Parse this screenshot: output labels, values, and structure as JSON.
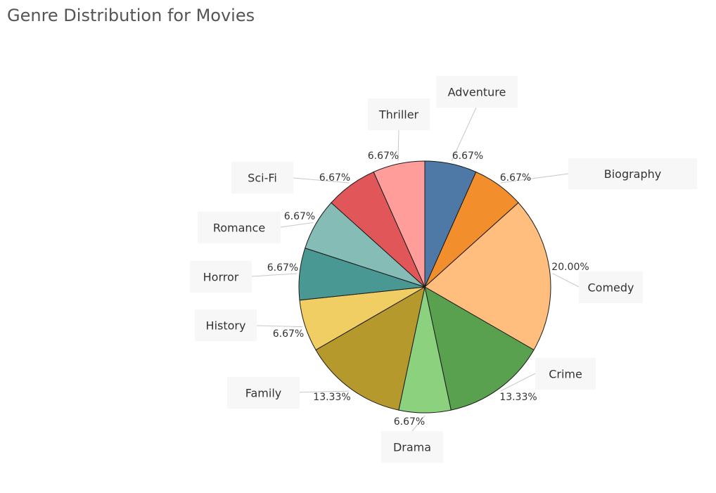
{
  "chart_data": {
    "type": "pie",
    "title": "Genre Distribution for Movies",
    "start_angle_deg": 0,
    "direction": "clockwise",
    "slices": [
      {
        "label": "Adventure",
        "value": 6.67,
        "value_label": "6.67%",
        "color": "#4e79a7"
      },
      {
        "label": "Biography",
        "value": 6.67,
        "value_label": "6.67%",
        "color": "#f28e2b"
      },
      {
        "label": "Comedy",
        "value": 20.0,
        "value_label": "20.00%",
        "color": "#ffbe7d"
      },
      {
        "label": "Crime",
        "value": 13.33,
        "value_label": "13.33%",
        "color": "#59a14f"
      },
      {
        "label": "Drama",
        "value": 6.67,
        "value_label": "6.67%",
        "color": "#8cd17d"
      },
      {
        "label": "Family",
        "value": 13.33,
        "value_label": "13.33%",
        "color": "#b6992d"
      },
      {
        "label": "History",
        "value": 6.67,
        "value_label": "6.67%",
        "color": "#f1ce63"
      },
      {
        "label": "Horror",
        "value": 6.67,
        "value_label": "6.67%",
        "color": "#499894"
      },
      {
        "label": "Romance",
        "value": 6.67,
        "value_label": "6.67%",
        "color": "#86bcb6"
      },
      {
        "label": "Sci-Fi",
        "value": 6.67,
        "value_label": "6.67%",
        "color": "#e15759"
      },
      {
        "label": "Thriller",
        "value": 6.67,
        "value_label": "6.67%",
        "color": "#ff9d9a"
      }
    ]
  }
}
